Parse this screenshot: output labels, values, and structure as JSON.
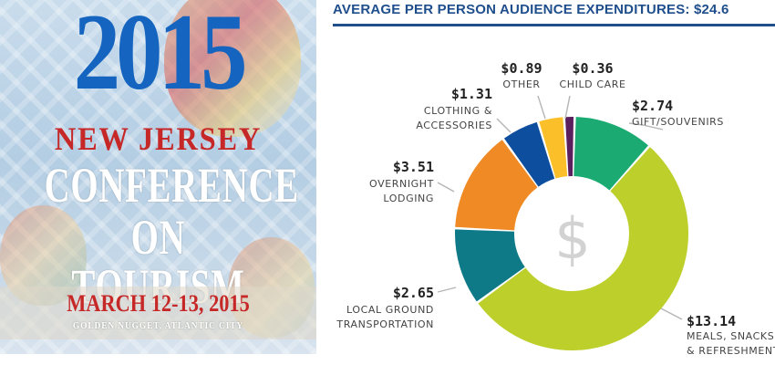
{
  "poster": {
    "year": "2015",
    "line1": "NEW JERSEY",
    "line2": "CONFERENCE",
    "line3": "ON TOURISM",
    "dates": "MARCH 12-13, 2015",
    "venue": "GOLDEN NUGGET, ATLANTIC CITY"
  },
  "chart_data": {
    "type": "pie",
    "title": "AVERAGE PER PERSON AUDIENCE EXPENDITURES: $24.6",
    "center_symbol": "$",
    "slices": [
      {
        "value_label": "$2.74",
        "label_lines": [
          "GIFT/SOUVENIRS"
        ],
        "value": 2.74,
        "color": "#1aaa72"
      },
      {
        "value_label": "$13.14",
        "label_lines": [
          "MEALS, SNACKS",
          "& REFRESHMENTS"
        ],
        "value": 13.14,
        "color": "#bccf2b"
      },
      {
        "value_label": "$2.65",
        "label_lines": [
          "LOCAL GROUND",
          "TRANSPORTATION"
        ],
        "value": 2.65,
        "color": "#0e7a88"
      },
      {
        "value_label": "$3.51",
        "label_lines": [
          "OVERNIGHT",
          "LODGING"
        ],
        "value": 3.51,
        "color": "#ef8a24"
      },
      {
        "value_label": "$1.31",
        "label_lines": [
          "CLOTHING &",
          "ACCESSORIES"
        ],
        "value": 1.31,
        "color": "#0d4f9e"
      },
      {
        "value_label": "$0.89",
        "label_lines": [
          "OTHER"
        ],
        "value": 0.89,
        "color": "#fbbf29"
      },
      {
        "value_label": "$0.36",
        "label_lines": [
          "CHILD CARE"
        ],
        "value": 0.36,
        "color": "#5b1f5e"
      }
    ],
    "leader_color": "#b5b5b5"
  }
}
